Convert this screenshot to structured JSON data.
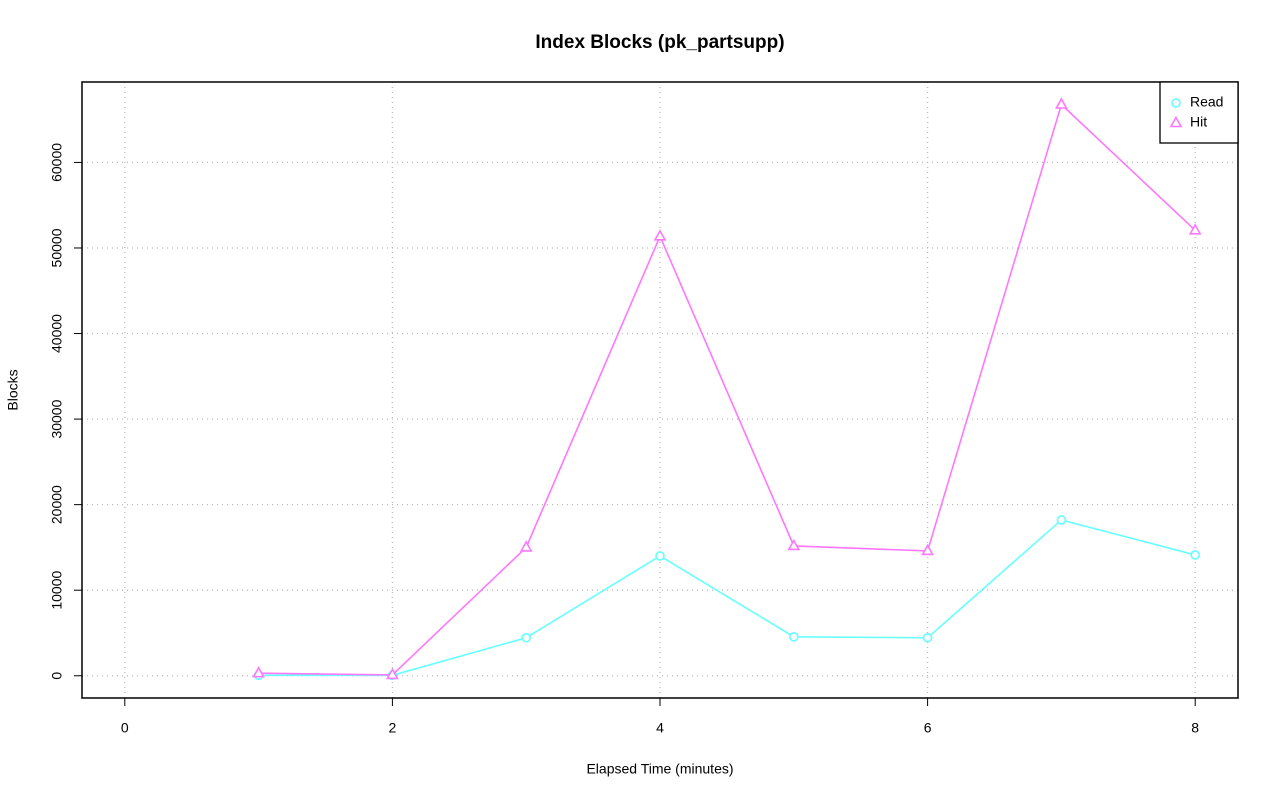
{
  "chart_data": {
    "type": "line",
    "title": "Index Blocks (pk_partsupp)",
    "x_label": "Elapsed Time (minutes)",
    "y_label": "Blocks",
    "x": [
      1,
      2,
      3,
      4,
      5,
      6,
      7,
      8
    ],
    "series": [
      {
        "name": "Read",
        "color": "#66FFFF",
        "marker": "circle",
        "values": [
          50,
          50,
          4440,
          14010,
          4550,
          4440,
          18210,
          14120
        ]
      },
      {
        "name": "Hit",
        "color": "#FF77FF",
        "marker": "triangle",
        "values": [
          300,
          100,
          15000,
          51360,
          15170,
          14590,
          66770,
          52060
        ]
      }
    ],
    "xlim": [
      -0.32,
      8.32
    ],
    "xticks": [
      0,
      2,
      4,
      6,
      8
    ],
    "ylim": [
      -2600,
      69400
    ],
    "yticks": [
      0,
      10000,
      20000,
      30000,
      40000,
      50000,
      60000
    ],
    "grid": true,
    "legend_position": "topright"
  }
}
